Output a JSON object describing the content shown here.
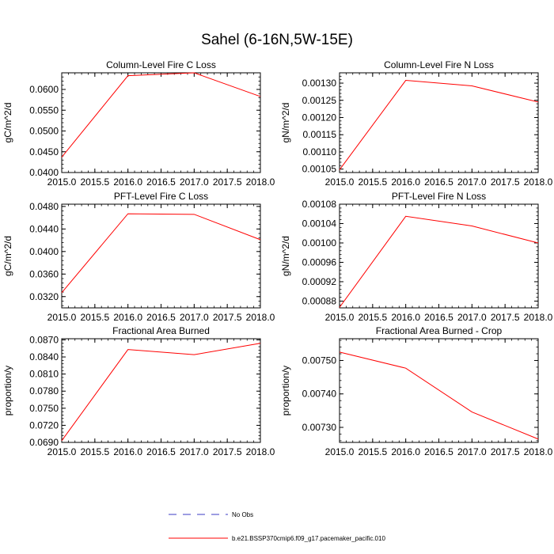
{
  "figure": {
    "title": "Sahel (6-16N,5W-15E)"
  },
  "legend": {
    "items": [
      {
        "name": "No Obs",
        "color": "#3b3bc6",
        "dashed": true
      },
      {
        "name": "b.e21.BSSP370cmip6.f09_g17.pacemaker_pacific.010",
        "color": "#ff0000",
        "dashed": false
      }
    ]
  },
  "chart_data": [
    {
      "type": "line",
      "title": "Column-Level Fire C Loss",
      "ylabel": "gC/m^2/d",
      "xlim": [
        2015.0,
        2018.0
      ],
      "ylim": [
        0.04,
        0.064
      ],
      "xticks": [
        "2015.0",
        "2015.5",
        "2016.0",
        "2016.5",
        "2017.0",
        "2017.5",
        "2018.0"
      ],
      "yticks": [
        "0.0400",
        "0.0450",
        "0.0500",
        "0.0550",
        "0.0600"
      ],
      "series": [
        {
          "name": "b.e21.BSSP370cmip6.f09_g17.pacemaker_pacific.010",
          "color": "#ff0000",
          "x": [
            2015,
            2016,
            2017,
            2018
          ],
          "values": [
            0.0437,
            0.0633,
            0.064,
            0.0583
          ]
        }
      ]
    },
    {
      "type": "line",
      "title": "Column-Level Fire N Loss",
      "ylabel": "gN/m^2/d",
      "xlim": [
        2015.0,
        2018.0
      ],
      "ylim": [
        0.00104,
        0.00133
      ],
      "xticks": [
        "2015.0",
        "2015.5",
        "2016.0",
        "2016.5",
        "2017.0",
        "2017.5",
        "2018.0"
      ],
      "yticks": [
        "0.00105",
        "0.00110",
        "0.00115",
        "0.00120",
        "0.00125",
        "0.00130"
      ],
      "series": [
        {
          "name": "b.e21.BSSP370cmip6.f09_g17.pacemaker_pacific.010",
          "color": "#ff0000",
          "x": [
            2015,
            2016,
            2017,
            2018
          ],
          "values": [
            0.001048,
            0.001308,
            0.001292,
            0.001245
          ]
        }
      ]
    },
    {
      "type": "line",
      "title": "PFT-Level Fire C Loss",
      "ylabel": "gC/m^2/d",
      "xlim": [
        2015.0,
        2018.0
      ],
      "ylim": [
        0.03,
        0.0484
      ],
      "xticks": [
        "2015.0",
        "2015.5",
        "2016.0",
        "2016.5",
        "2017.0",
        "2017.5",
        "2018.0"
      ],
      "yticks": [
        "0.0320",
        "0.0360",
        "0.0400",
        "0.0440",
        "0.0480"
      ],
      "series": [
        {
          "name": "b.e21.BSSP370cmip6.f09_g17.pacemaker_pacific.010",
          "color": "#ff0000",
          "x": [
            2015,
            2016,
            2017,
            2018
          ],
          "values": [
            0.0327,
            0.0467,
            0.0466,
            0.0421
          ]
        }
      ]
    },
    {
      "type": "line",
      "title": "PFT-Level Fire N Loss",
      "ylabel": "gN/m^2/d",
      "xlim": [
        2015.0,
        2018.0
      ],
      "ylim": [
        0.000866,
        0.00108
      ],
      "xticks": [
        "2015.0",
        "2015.5",
        "2016.0",
        "2016.5",
        "2017.0",
        "2017.5",
        "2018.0"
      ],
      "yticks": [
        "0.00088",
        "0.00092",
        "0.00096",
        "0.00100",
        "0.00104",
        "0.00108"
      ],
      "series": [
        {
          "name": "b.e21.BSSP370cmip6.f09_g17.pacemaker_pacific.010",
          "color": "#ff0000",
          "x": [
            2015,
            2016,
            2017,
            2018
          ],
          "values": [
            0.000867,
            0.001055,
            0.001035,
            0.001
          ]
        }
      ]
    },
    {
      "type": "line",
      "title": "Fractional Area Burned",
      "ylabel": "proportion/y",
      "xlim": [
        2015.0,
        2018.0
      ],
      "ylim": [
        0.069,
        0.0872
      ],
      "xticks": [
        "2015.0",
        "2015.5",
        "2016.0",
        "2016.5",
        "2017.0",
        "2017.5",
        "2018.0"
      ],
      "yticks": [
        "0.0690",
        "0.0720",
        "0.0750",
        "0.0780",
        "0.0810",
        "0.0840",
        "0.0870"
      ],
      "series": [
        {
          "name": "b.e21.BSSP370cmip6.f09_g17.pacemaker_pacific.010",
          "color": "#ff0000",
          "x": [
            2015,
            2016,
            2017,
            2018
          ],
          "values": [
            0.0693,
            0.0853,
            0.0844,
            0.0864
          ]
        }
      ]
    },
    {
      "type": "line",
      "title": "Fractional Area Burned - Crop",
      "ylabel": "proportion/y",
      "xlim": [
        2015.0,
        2018.0
      ],
      "ylim": [
        0.007255,
        0.007565
      ],
      "xticks": [
        "2015.0",
        "2015.5",
        "2016.0",
        "2016.5",
        "2017.0",
        "2017.5",
        "2018.0"
      ],
      "yticks": [
        "0.00730",
        "0.00740",
        "0.00750"
      ],
      "series": [
        {
          "name": "b.e21.BSSP370cmip6.f09_g17.pacemaker_pacific.010",
          "color": "#ff0000",
          "x": [
            2015,
            2016,
            2017,
            2018
          ],
          "values": [
            0.007525,
            0.007477,
            0.007346,
            0.007265
          ]
        }
      ]
    }
  ]
}
